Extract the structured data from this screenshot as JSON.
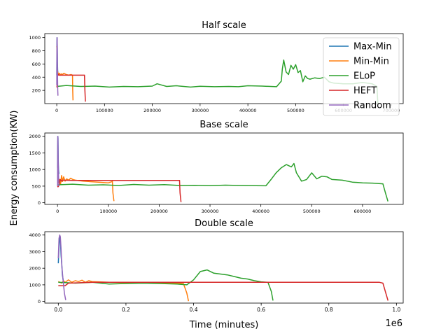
{
  "figure": {
    "ylabel": "Energy consumption(KW)",
    "xlabel": "Time (minutes)",
    "x_offset_label": "1e6"
  },
  "legend": {
    "entries": [
      "Max-Min",
      "Min-Min",
      "ELoP",
      "HEFT",
      "Random"
    ],
    "colors": [
      "#1f77b4",
      "#ff7f0e",
      "#2ca02c",
      "#d62728",
      "#9467bd"
    ],
    "placement": "top-right"
  },
  "chart_data": [
    {
      "type": "line",
      "title": "Half scale",
      "xlim": [
        -25000,
        725000
      ],
      "ylim": [
        0,
        1060
      ],
      "xticks": [
        0,
        100000,
        200000,
        300000,
        400000,
        500000,
        600000,
        700000
      ],
      "xtick_labels": [
        "0",
        "100000",
        "200000",
        "300000",
        "400000",
        "500000",
        "600000",
        "700000"
      ],
      "yticks": [
        200,
        400,
        600,
        800,
        1000
      ],
      "ytick_labels": [
        "200",
        "400",
        "600",
        "800",
        "1000"
      ],
      "series": [
        {
          "name": "Max-Min",
          "color": "#1f77b4",
          "x": [
            0,
            300,
            600,
            1000,
            1500,
            2000,
            2500,
            3000
          ],
          "y": [
            430,
            900,
            1000,
            980,
            620,
            500,
            460,
            440
          ]
        },
        {
          "name": "Min-Min",
          "color": "#ff7f0e",
          "x": [
            0,
            500,
            1000,
            2000,
            4000,
            6000,
            8000,
            10000,
            12000,
            15000,
            20000,
            25000,
            30000,
            33000,
            33500,
            34000
          ],
          "y": [
            870,
            820,
            520,
            480,
            440,
            460,
            430,
            450,
            440,
            460,
            440,
            430,
            440,
            430,
            200,
            50
          ]
        },
        {
          "name": "ELoP",
          "color": "#2ca02c",
          "x": [
            0,
            20000,
            50000,
            80000,
            110000,
            140000,
            170000,
            200000,
            210000,
            230000,
            250000,
            280000,
            300000,
            330000,
            360000,
            380000,
            400000,
            430000,
            460000,
            470000,
            472000,
            475000,
            480000,
            485000,
            490000,
            495000,
            500000,
            505000,
            510000,
            515000,
            520000,
            525000,
            530000,
            540000,
            550000,
            560000,
            570000,
            580000,
            600000,
            620000,
            640000,
            660000,
            670000,
            672000
          ],
          "y": [
            260,
            275,
            260,
            265,
            250,
            260,
            255,
            265,
            300,
            260,
            270,
            250,
            262,
            255,
            260,
            255,
            270,
            265,
            255,
            340,
            520,
            660,
            480,
            440,
            580,
            520,
            590,
            470,
            500,
            330,
            420,
            380,
            370,
            390,
            380,
            400,
            330,
            310,
            300,
            300,
            320,
            300,
            260,
            0
          ]
        },
        {
          "name": "HEFT",
          "color": "#d62728",
          "x": [
            0,
            500,
            1000,
            2000,
            3000,
            4000,
            5000,
            10000,
            20000,
            30000,
            40000,
            50000,
            55000,
            58000,
            59000,
            60000
          ],
          "y": [
            260,
            250,
            300,
            450,
            430,
            440,
            430,
            430,
            430,
            430,
            430,
            430,
            430,
            430,
            200,
            30
          ]
        },
        {
          "name": "Random",
          "color": "#9467bd",
          "x": [
            0,
            300,
            600,
            900,
            1200,
            1500,
            1800,
            2100,
            2500
          ],
          "y": [
            280,
            800,
            1000,
            960,
            780,
            500,
            350,
            200,
            120
          ]
        }
      ]
    },
    {
      "type": "line",
      "title": "Base scale",
      "xlim": [
        -25000,
        680000
      ],
      "ylim": [
        -50,
        2100
      ],
      "xticks": [
        0,
        100000,
        200000,
        300000,
        400000,
        500000,
        600000
      ],
      "xtick_labels": [
        "0",
        "100000",
        "200000",
        "300000",
        "400000",
        "500000",
        "600000"
      ],
      "yticks": [
        0,
        500,
        1000,
        1500,
        2000
      ],
      "ytick_labels": [
        "0",
        "500",
        "1000",
        "1500",
        "2000"
      ],
      "series": [
        {
          "name": "Max-Min",
          "color": "#1f77b4",
          "x": [
            0,
            300,
            600,
            1000,
            1500,
            2000,
            2500,
            3000
          ],
          "y": [
            1050,
            1700,
            2000,
            1950,
            1300,
            1000,
            900,
            870
          ]
        },
        {
          "name": "Min-Min",
          "color": "#ff7f0e",
          "x": [
            0,
            1000,
            2000,
            4000,
            6000,
            8000,
            10000,
            12000,
            15000,
            18000,
            22000,
            26000,
            30000,
            35000,
            50000,
            80000,
            100000,
            108000,
            109000,
            111000
          ],
          "y": [
            880,
            820,
            600,
            700,
            550,
            820,
            640,
            780,
            650,
            720,
            680,
            740,
            700,
            680,
            650,
            620,
            600,
            640,
            300,
            50
          ]
        },
        {
          "name": "ELoP",
          "color": "#2ca02c",
          "x": [
            0,
            30000,
            60000,
            90000,
            120000,
            150000,
            180000,
            210000,
            240000,
            270000,
            300000,
            330000,
            360000,
            390000,
            410000,
            420000,
            430000,
            440000,
            450000,
            460000,
            465000,
            470000,
            480000,
            490000,
            500000,
            510000,
            520000,
            530000,
            540000,
            560000,
            580000,
            600000,
            620000,
            640000,
            645000,
            650000
          ],
          "y": [
            540,
            560,
            530,
            540,
            520,
            550,
            530,
            545,
            520,
            525,
            515,
            530,
            520,
            515,
            510,
            700,
            900,
            1050,
            1150,
            1080,
            1180,
            900,
            650,
            700,
            900,
            720,
            800,
            780,
            700,
            680,
            620,
            600,
            590,
            570,
            300,
            40
          ]
        },
        {
          "name": "HEFT",
          "color": "#d62728",
          "x": [
            0,
            1000,
            3000,
            5000,
            8000,
            10000,
            30000,
            60000,
            100000,
            150000,
            200000,
            230000,
            240000,
            241000,
            243000
          ],
          "y": [
            500,
            480,
            520,
            700,
            650,
            680,
            670,
            670,
            670,
            670,
            670,
            670,
            670,
            300,
            20
          ]
        },
        {
          "name": "Random",
          "color": "#9467bd",
          "x": [
            0,
            300,
            600,
            900,
            1200,
            1500,
            1800,
            2200,
            2600,
            3000
          ],
          "y": [
            500,
            1600,
            2000,
            1900,
            1500,
            1200,
            900,
            700,
            550,
            500
          ]
        }
      ]
    },
    {
      "type": "line",
      "title": "Double scale",
      "xlim": [
        -0.04,
        1.02
      ],
      "ylim": [
        -100,
        4200
      ],
      "xticks": [
        0,
        0.2,
        0.4,
        0.6,
        0.8,
        1.0
      ],
      "xtick_labels": [
        "0.0",
        "0.2",
        "0.4",
        "0.6",
        "0.8",
        "1.0"
      ],
      "yticks": [
        0,
        1000,
        2000,
        3000,
        4000
      ],
      "ytick_labels": [
        "0",
        "1000",
        "2000",
        "3000",
        "4000"
      ],
      "series": [
        {
          "name": "Max-Min",
          "color": "#1f77b4",
          "x": [
            0,
            0.002,
            0.004,
            0.006,
            0.008,
            0.01,
            0.012,
            0.015
          ],
          "y": [
            2300,
            3300,
            3900,
            3700,
            2800,
            2300,
            1600,
            1200
          ]
        },
        {
          "name": "Min-Min",
          "color": "#ff7f0e",
          "x": [
            0,
            0.005,
            0.01,
            0.015,
            0.02,
            0.03,
            0.04,
            0.05,
            0.06,
            0.07,
            0.08,
            0.09,
            0.1,
            0.15,
            0.25,
            0.35,
            0.37,
            0.38,
            0.385
          ],
          "y": [
            1200,
            1150,
            1100,
            1250,
            1150,
            1300,
            1150,
            1250,
            1200,
            1280,
            1150,
            1250,
            1200,
            1150,
            1120,
            1100,
            1080,
            500,
            20
          ]
        },
        {
          "name": "ELoP",
          "color": "#2ca02c",
          "x": [
            0,
            0.05,
            0.1,
            0.15,
            0.2,
            0.25,
            0.3,
            0.35,
            0.38,
            0.4,
            0.42,
            0.44,
            0.46,
            0.5,
            0.52,
            0.54,
            0.56,
            0.58,
            0.6,
            0.62,
            0.63,
            0.635
          ],
          "y": [
            1150,
            1100,
            1150,
            1050,
            1080,
            1100,
            1080,
            1050,
            1000,
            1300,
            1800,
            1900,
            1700,
            1600,
            1500,
            1400,
            1350,
            1250,
            1180,
            1150,
            600,
            50
          ]
        },
        {
          "name": "HEFT",
          "color": "#d62728",
          "x": [
            0,
            0.005,
            0.01,
            0.015,
            0.02,
            0.03,
            0.1,
            0.2,
            0.3,
            0.4,
            0.5,
            0.6,
            0.7,
            0.8,
            0.9,
            0.95,
            0.96,
            0.975
          ],
          "y": [
            950,
            950,
            950,
            950,
            950,
            1100,
            1150,
            1150,
            1150,
            1150,
            1150,
            1150,
            1150,
            1150,
            1150,
            1150,
            1100,
            50
          ]
        },
        {
          "name": "Random",
          "color": "#9467bd",
          "x": [
            0,
            0.002,
            0.004,
            0.006,
            0.008,
            0.01,
            0.014,
            0.018,
            0.022
          ],
          "y": [
            2600,
            3800,
            4000,
            3900,
            3200,
            2200,
            1300,
            500,
            80
          ]
        }
      ]
    }
  ]
}
